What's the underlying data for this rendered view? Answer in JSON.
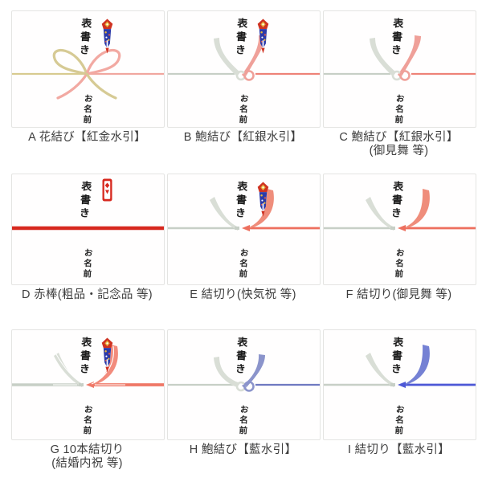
{
  "common": {
    "top_label": "表書き",
    "bottom_label": "お名前"
  },
  "cards": [
    {
      "id": "A",
      "label": "A 花結び【紅金水引】",
      "label2": "",
      "knot": "bow",
      "emblem": "classic",
      "colors": {
        "left_line": "#d8cb90",
        "right_line": "#f1a79f",
        "left_ribbon": "#d6ca94",
        "right_ribbon": "#f2a9a2"
      }
    },
    {
      "id": "B",
      "label": "B 鮑結び【紅銀水引】",
      "label2": "",
      "knot": "awabi",
      "emblem": "classic",
      "colors": {
        "left_line": "#c7cfc6",
        "right_line": "#ee8378",
        "left_ribbon": "#d9ded6",
        "right_ribbon": "#efa099"
      }
    },
    {
      "id": "C",
      "label": "C 鮑結び【紅銀水引】",
      "label2": "(御見舞 等)",
      "knot": "awabi",
      "emblem": "none",
      "colors": {
        "left_line": "#c7cfc6",
        "right_line": "#ee8378",
        "left_ribbon": "#d9ded6",
        "right_ribbon": "#efa099"
      }
    },
    {
      "id": "D",
      "label": "D 赤棒(粗品・記念品 等)",
      "label2": "",
      "knot": "bar",
      "emblem": "simple",
      "colors": {
        "bar": "#d7281e"
      }
    },
    {
      "id": "E",
      "label": "E 結切り(快気祝 等)",
      "label2": "",
      "knot": "kiri",
      "emblem": "classic",
      "colors": {
        "left_line": "#c7cfc6",
        "right_line": "#ed6f5e",
        "left_ribbon": "#d9ded6",
        "right_ribbon": "#ef8d7b"
      }
    },
    {
      "id": "F",
      "label": "F 結切り(御見舞 等)",
      "label2": "",
      "knot": "kiri",
      "emblem": "none",
      "colors": {
        "left_line": "#c7cfc6",
        "right_line": "#ed6f5e",
        "left_ribbon": "#d9ded6",
        "right_ribbon": "#ef8d7b"
      }
    },
    {
      "id": "G",
      "label": "G 10本結切り",
      "label2": "(結婚内祝 等)",
      "knot": "kiri10",
      "emblem": "classic",
      "colors": {
        "left_line": "#c7cfc6",
        "right_line": "#ef7766",
        "left_ribbon": "#d9ded6",
        "right_ribbon": "#f28b7c"
      }
    },
    {
      "id": "H",
      "label": "H 鮑結び【藍水引】",
      "label2": "",
      "knot": "awabi",
      "emblem": "none",
      "colors": {
        "left_line": "#c7cfc6",
        "right_line": "#6f7ac1",
        "left_ribbon": "#d9ded6",
        "right_ribbon": "#8b94cb"
      }
    },
    {
      "id": "I",
      "label": "I 結切り【藍水引】",
      "label2": "",
      "knot": "kiri",
      "emblem": "none",
      "colors": {
        "left_line": "#c7cfc6",
        "right_line": "#4d58d6",
        "left_ribbon": "#d9ded6",
        "right_ribbon": "#7581d4"
      }
    }
  ]
}
